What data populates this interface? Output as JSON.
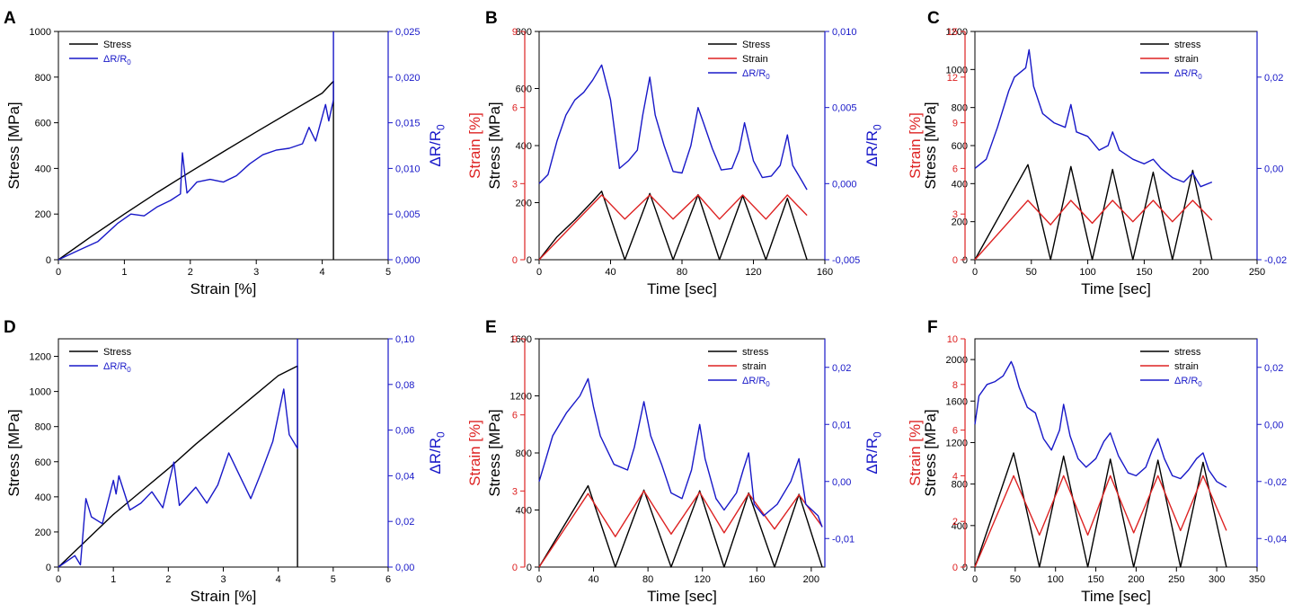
{
  "figure_title": "",
  "chart_data": [
    {
      "panel": "A",
      "type": "line",
      "xlabel": "Strain [%]",
      "ylabel": "Stress [MPa]",
      "y2label": "ΔR/R0",
      "xlim": [
        0,
        5
      ],
      "ylim": [
        0,
        1000
      ],
      "y2lim": [
        0,
        0.025
      ],
      "xticks": [
        "0",
        "1",
        "2",
        "3",
        "4",
        "5"
      ],
      "yticks": [
        "0",
        "200",
        "400",
        "600",
        "800",
        "1000"
      ],
      "y2ticks": [
        "0,000",
        "0,005",
        "0,010",
        "0,015",
        "0,020",
        "0,025"
      ],
      "legend": [
        "Stress",
        "ΔR/R0"
      ],
      "series": [
        {
          "name": "Stress",
          "color": "#000000",
          "axis": "left",
          "x": [
            0,
            0.5,
            1,
            1.5,
            2,
            2.5,
            3,
            3.5,
            4,
            4.17,
            4.17
          ],
          "y": [
            0,
            102,
            200,
            295,
            385,
            473,
            560,
            645,
            730,
            782,
            0
          ]
        },
        {
          "name": "ΔR/R0",
          "color": "#1818c8",
          "axis": "right",
          "x": [
            0,
            0.3,
            0.6,
            0.9,
            1.1,
            1.3,
            1.5,
            1.7,
            1.85,
            1.88,
            1.95,
            2.1,
            2.3,
            2.5,
            2.7,
            2.9,
            3.1,
            3.3,
            3.5,
            3.7,
            3.8,
            3.9,
            4.05,
            4.1,
            4.17,
            4.17
          ],
          "y": [
            0,
            0.001,
            0.002,
            0.004,
            0.005,
            0.0048,
            0.0058,
            0.0065,
            0.0072,
            0.0117,
            0.0073,
            0.0085,
            0.0088,
            0.0085,
            0.0092,
            0.0105,
            0.0115,
            0.012,
            0.0122,
            0.0127,
            0.0145,
            0.013,
            0.017,
            0.0152,
            0.0175,
            0.025
          ]
        }
      ]
    },
    {
      "panel": "B",
      "type": "line",
      "xlabel": "Time [sec]",
      "ylabel": "Stress [MPa]",
      "y2label": "ΔR/R0",
      "y0label": "Strain [%]",
      "xlim": [
        0,
        160
      ],
      "ylim": [
        0,
        800
      ],
      "y2lim": [
        -0.005,
        0.01
      ],
      "y0lim": [
        0,
        9
      ],
      "xticks": [
        "0",
        "40",
        "80",
        "120",
        "160"
      ],
      "yticks": [
        "0",
        "200",
        "400",
        "600",
        "800"
      ],
      "y2ticks": [
        "-0,005",
        "0,000",
        "0,005",
        "0,010"
      ],
      "y0ticks": [
        "0",
        "3",
        "6",
        "9"
      ],
      "legend": [
        "Stress",
        "Strain",
        "ΔR/R0"
      ],
      "series": [
        {
          "name": "Stress",
          "color": "#000000",
          "axis": "left",
          "x": [
            0,
            10,
            20,
            30,
            35,
            48,
            62,
            75,
            89,
            101,
            114,
            127,
            139,
            150
          ],
          "y": [
            0,
            80,
            140,
            205,
            240,
            0,
            232,
            0,
            228,
            0,
            225,
            0,
            215,
            0
          ]
        },
        {
          "name": "Strain",
          "color": "#dd2222",
          "axis": "strain",
          "x": [
            0,
            35,
            48,
            62,
            75,
            89,
            101,
            114,
            127,
            139,
            150
          ],
          "y": [
            0,
            2.55,
            1.6,
            2.55,
            1.6,
            2.55,
            1.6,
            2.55,
            1.6,
            2.55,
            1.75
          ]
        },
        {
          "name": "ΔR/R0",
          "color": "#1818c8",
          "axis": "right",
          "x": [
            0,
            5,
            10,
            15,
            20,
            25,
            30,
            35,
            40,
            45,
            50,
            55,
            58,
            62,
            65,
            70,
            75,
            80,
            85,
            89,
            92,
            97,
            102,
            108,
            112,
            115,
            120,
            125,
            130,
            135,
            139,
            142,
            147,
            150
          ],
          "y": [
            0.0,
            0.0006,
            0.0028,
            0.0045,
            0.0055,
            0.006,
            0.0068,
            0.0078,
            0.0055,
            0.001,
            0.0015,
            0.0022,
            0.0045,
            0.007,
            0.0045,
            0.0025,
            0.0008,
            0.0007,
            0.0025,
            0.005,
            0.004,
            0.0023,
            0.0009,
            0.001,
            0.0022,
            0.004,
            0.0015,
            0.0004,
            0.0005,
            0.0012,
            0.0032,
            0.0012,
            0.0002,
            -0.0004
          ]
        }
      ]
    },
    {
      "panel": "C",
      "type": "line",
      "xlabel": "Time [sec]",
      "ylabel": "Stress [MPa]",
      "y2label": "ΔR/R0",
      "y0label": "Strain [%]",
      "xlim": [
        0,
        250
      ],
      "ylim": [
        0,
        1200
      ],
      "y2lim": [
        -0.02,
        0.03
      ],
      "y0lim": [
        0,
        15
      ],
      "xticks": [
        "0",
        "50",
        "100",
        "150",
        "200",
        "250"
      ],
      "yticks": [
        "0",
        "200",
        "400",
        "600",
        "800",
        "1000",
        "1200"
      ],
      "y2ticks": [
        "-0,02",
        "0,00",
        "0,02"
      ],
      "y0ticks": [
        "0",
        "3",
        "6",
        "9",
        "12",
        "15"
      ],
      "legend": [
        "stress",
        "strain",
        "ΔR/R0"
      ],
      "series": [
        {
          "name": "stress",
          "color": "#000000",
          "axis": "left",
          "x": [
            0,
            47,
            67,
            85,
            104,
            122,
            140,
            158,
            175,
            193,
            210
          ],
          "y": [
            0,
            500,
            0,
            490,
            0,
            475,
            0,
            460,
            0,
            470,
            0
          ]
        },
        {
          "name": "strain",
          "color": "#dd2222",
          "axis": "strain",
          "x": [
            0,
            47,
            67,
            85,
            104,
            122,
            140,
            158,
            175,
            193,
            210
          ],
          "y": [
            0,
            3.9,
            2.3,
            3.9,
            2.4,
            3.9,
            2.5,
            3.9,
            2.5,
            3.9,
            2.6
          ]
        },
        {
          "name": "ΔR/R0",
          "color": "#1818c8",
          "axis": "right",
          "x": [
            0,
            10,
            20,
            30,
            35,
            45,
            48,
            52,
            60,
            70,
            80,
            85,
            90,
            100,
            110,
            118,
            122,
            128,
            140,
            150,
            158,
            165,
            175,
            185,
            193,
            200,
            210
          ],
          "y": [
            0.0,
            0.002,
            0.009,
            0.017,
            0.02,
            0.022,
            0.026,
            0.018,
            0.012,
            0.01,
            0.009,
            0.014,
            0.008,
            0.007,
            0.004,
            0.005,
            0.008,
            0.004,
            0.002,
            0.001,
            0.002,
            0.0,
            -0.002,
            -0.003,
            -0.001,
            -0.004,
            -0.003
          ]
        }
      ]
    },
    {
      "panel": "D",
      "type": "line",
      "xlabel": "Strain [%]",
      "ylabel": "Stress [MPa]",
      "y2label": "ΔR/R0",
      "xlim": [
        0,
        6
      ],
      "ylim": [
        0,
        1300
      ],
      "y2lim": [
        0,
        0.1
      ],
      "xticks": [
        "0",
        "1",
        "2",
        "3",
        "4",
        "5",
        "6"
      ],
      "yticks": [
        "0",
        "200",
        "400",
        "600",
        "800",
        "1000",
        "1200"
      ],
      "y2ticks": [
        "0,00",
        "0,02",
        "0,04",
        "0,06",
        "0,08",
        "0,10"
      ],
      "legend": [
        "Stress",
        "ΔR/R0"
      ],
      "series": [
        {
          "name": "Stress",
          "color": "#000000",
          "axis": "left",
          "x": [
            0,
            0.5,
            1,
            1.5,
            2,
            2.5,
            3,
            3.5,
            4,
            4.35,
            4.35
          ],
          "y": [
            0,
            150,
            300,
            430,
            560,
            700,
            830,
            960,
            1090,
            1145,
            0
          ]
        },
        {
          "name": "ΔR/R0",
          "color": "#1818c8",
          "axis": "right",
          "x": [
            0,
            0.3,
            0.4,
            0.5,
            0.6,
            0.8,
            1.0,
            1.05,
            1.1,
            1.3,
            1.5,
            1.7,
            1.9,
            2.1,
            2.2,
            2.5,
            2.7,
            2.9,
            3.1,
            3.3,
            3.5,
            3.7,
            3.9,
            4.1,
            4.2,
            4.35,
            4.35
          ],
          "y": [
            0,
            0.005,
            0.001,
            0.03,
            0.022,
            0.019,
            0.038,
            0.032,
            0.04,
            0.025,
            0.028,
            0.033,
            0.026,
            0.046,
            0.027,
            0.035,
            0.028,
            0.036,
            0.05,
            0.04,
            0.03,
            0.042,
            0.055,
            0.078,
            0.058,
            0.052,
            0.1
          ]
        }
      ]
    },
    {
      "panel": "E",
      "type": "line",
      "xlabel": "Time [sec]",
      "ylabel": "Stress [MPa]",
      "y2label": "ΔR/R0",
      "y0label": "Strain [%]",
      "xlim": [
        0,
        210
      ],
      "ylim": [
        0,
        1600
      ],
      "y2lim": [
        -0.015,
        0.025
      ],
      "y0lim": [
        0,
        9
      ],
      "xticks": [
        "0",
        "40",
        "80",
        "120",
        "160",
        "200"
      ],
      "yticks": [
        "0",
        "400",
        "800",
        "1200",
        "1600"
      ],
      "y2ticks": [
        "-0,01",
        "0,00",
        "0,01",
        "0,02"
      ],
      "y0ticks": [
        "0",
        "3",
        "6",
        "9"
      ],
      "legend": [
        "stress",
        "strain",
        "ΔR/R0"
      ],
      "series": [
        {
          "name": "stress",
          "color": "#000000",
          "axis": "left",
          "x": [
            0,
            36,
            56,
            77,
            97,
            118,
            136,
            154,
            173,
            191,
            208
          ],
          "y": [
            0,
            570,
            0,
            540,
            0,
            535,
            0,
            520,
            0,
            510,
            0
          ]
        },
        {
          "name": "strain",
          "color": "#dd2222",
          "axis": "strain",
          "x": [
            0,
            36,
            56,
            77,
            97,
            118,
            136,
            154,
            173,
            191,
            208
          ],
          "y": [
            0,
            2.9,
            1.2,
            3.0,
            1.3,
            2.95,
            1.35,
            2.9,
            1.5,
            2.85,
            1.6
          ]
        },
        {
          "name": "ΔR/R0",
          "color": "#1818c8",
          "axis": "right",
          "x": [
            0,
            5,
            10,
            20,
            30,
            36,
            40,
            45,
            55,
            65,
            70,
            77,
            82,
            90,
            97,
            105,
            112,
            118,
            122,
            130,
            136,
            145,
            150,
            154,
            158,
            165,
            175,
            185,
            191,
            196,
            205,
            208
          ],
          "y": [
            0.0,
            0.004,
            0.008,
            0.012,
            0.015,
            0.018,
            0.013,
            0.008,
            0.003,
            0.002,
            0.006,
            0.014,
            0.008,
            0.003,
            -0.002,
            -0.003,
            0.002,
            0.01,
            0.004,
            -0.003,
            -0.005,
            -0.002,
            0.002,
            0.005,
            -0.004,
            -0.006,
            -0.004,
            0.0,
            0.004,
            -0.004,
            -0.006,
            -0.008
          ]
        }
      ]
    },
    {
      "panel": "F",
      "type": "line",
      "xlabel": "Time [sec]",
      "ylabel": "Stress [MPa]",
      "y2label": "ΔR/R0",
      "y0label": "Strain [%]",
      "xlim": [
        0,
        350
      ],
      "ylim": [
        0,
        2200
      ],
      "y2lim": [
        -0.05,
        0.03
      ],
      "y0lim": [
        0,
        10
      ],
      "xticks": [
        "0",
        "50",
        "100",
        "150",
        "200",
        "250",
        "300",
        "350"
      ],
      "yticks": [
        "0",
        "400",
        "800",
        "1200",
        "1600",
        "2000"
      ],
      "y2ticks": [
        "-0,04",
        "-0,02",
        "0,00",
        "0,02"
      ],
      "y0ticks": [
        "0",
        "2",
        "4",
        "6",
        "8",
        "10"
      ],
      "legend": [
        "stress",
        "strain",
        "ΔR/R0"
      ],
      "series": [
        {
          "name": "stress",
          "color": "#000000",
          "axis": "left",
          "x": [
            0,
            48,
            80,
            110,
            140,
            168,
            197,
            227,
            255,
            283,
            312
          ],
          "y": [
            0,
            1100,
            0,
            1070,
            0,
            1040,
            0,
            1030,
            0,
            1010,
            0
          ]
        },
        {
          "name": "strain",
          "color": "#dd2222",
          "axis": "strain",
          "x": [
            0,
            48,
            80,
            110,
            140,
            168,
            197,
            227,
            255,
            283,
            312
          ],
          "y": [
            0,
            4.0,
            1.4,
            4.0,
            1.4,
            4.0,
            1.5,
            4.0,
            1.6,
            4.0,
            1.6
          ]
        },
        {
          "name": "ΔR/R0",
          "color": "#1818c8",
          "axis": "right",
          "x": [
            0,
            5,
            15,
            25,
            35,
            45,
            48,
            55,
            65,
            75,
            85,
            95,
            105,
            110,
            118,
            128,
            138,
            150,
            160,
            168,
            178,
            190,
            200,
            212,
            220,
            227,
            235,
            245,
            255,
            265,
            275,
            283,
            290,
            300,
            312
          ],
          "y": [
            0.0,
            0.01,
            0.014,
            0.015,
            0.017,
            0.022,
            0.02,
            0.013,
            0.006,
            0.004,
            -0.005,
            -0.009,
            -0.002,
            0.007,
            -0.004,
            -0.012,
            -0.015,
            -0.012,
            -0.006,
            -0.003,
            -0.011,
            -0.017,
            -0.018,
            -0.015,
            -0.009,
            -0.005,
            -0.012,
            -0.018,
            -0.019,
            -0.016,
            -0.012,
            -0.01,
            -0.016,
            -0.02,
            -0.022
          ]
        }
      ]
    }
  ]
}
